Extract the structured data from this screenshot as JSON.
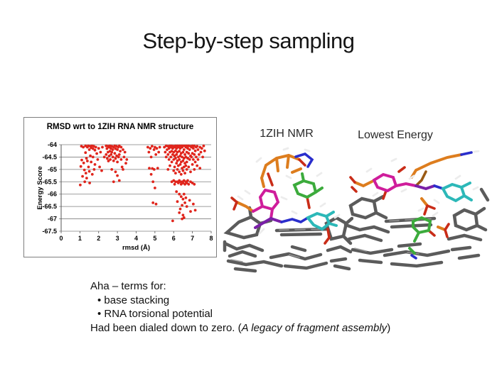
{
  "slide": {
    "title": "Step-by-step sampling"
  },
  "figures": {
    "left_label": "1ZIH NMR",
    "right_label": "Lowest Energy"
  },
  "notes": {
    "line1": "Aha – terms for:",
    "bullets": [
      "• base stacking",
      "• RNA torsional potential"
    ],
    "last_prefix": "Had been dialed down to zero. (",
    "last_italic": "A legacy of fragment assembly",
    "last_suffix": ")"
  },
  "chart_data": {
    "type": "scatter",
    "title": "RMSD wrt to 1ZIH RNA NMR structure",
    "xlabel": "rmsd (Å)",
    "ylabel": "Energy Score",
    "xlim": [
      0,
      8
    ],
    "ylim": [
      -67.5,
      -64
    ],
    "x_ticks": [
      0,
      1,
      2,
      3,
      4,
      5,
      6,
      7,
      8
    ],
    "y_ticks": [
      -64,
      -64.5,
      -65,
      -65.5,
      -66,
      -66.5,
      -67,
      -67.5
    ],
    "grid": "horizontal",
    "legend": "none",
    "marker_color": "#e0251c",
    "points": [
      [
        1.02,
        -65.63
      ],
      [
        1.05,
        -64.88
      ],
      [
        1.08,
        -64.06
      ],
      [
        1.1,
        -64.62
      ],
      [
        1.14,
        -65.28
      ],
      [
        1.18,
        -64.1
      ],
      [
        1.2,
        -64.74
      ],
      [
        1.24,
        -65.02
      ],
      [
        1.26,
        -65.5
      ],
      [
        1.3,
        -64.05
      ],
      [
        1.3,
        -64.32
      ],
      [
        1.32,
        -65.15
      ],
      [
        1.35,
        -64.55
      ],
      [
        1.36,
        -65.35
      ],
      [
        1.4,
        -64.1
      ],
      [
        1.4,
        -64.66
      ],
      [
        1.44,
        -64.05
      ],
      [
        1.46,
        -64.9
      ],
      [
        1.5,
        -64.2
      ],
      [
        1.5,
        -65.08
      ],
      [
        1.52,
        -65.55
      ],
      [
        1.55,
        -64.06
      ],
      [
        1.56,
        -64.45
      ],
      [
        1.6,
        -64.12
      ],
      [
        1.6,
        -64.7
      ],
      [
        1.64,
        -64.05
      ],
      [
        1.66,
        -65.2
      ],
      [
        1.7,
        -64.16
      ],
      [
        1.7,
        -64.5
      ],
      [
        1.74,
        -64.06
      ],
      [
        1.76,
        -65.0
      ],
      [
        1.8,
        -64.22
      ],
      [
        1.8,
        -64.8
      ],
      [
        1.85,
        -64.1
      ],
      [
        1.9,
        -64.36
      ],
      [
        1.95,
        -64.6
      ],
      [
        2.0,
        -64.15
      ],
      [
        2.05,
        -64.9
      ],
      [
        2.1,
        -64.3
      ],
      [
        2.16,
        -65.05
      ],
      [
        2.2,
        -64.1
      ],
      [
        2.3,
        -64.5
      ],
      [
        2.4,
        -64.05
      ],
      [
        2.4,
        -64.4
      ],
      [
        2.44,
        -64.16
      ],
      [
        2.46,
        -64.56
      ],
      [
        2.5,
        -64.06
      ],
      [
        2.5,
        -64.3
      ],
      [
        2.52,
        -64.66
      ],
      [
        2.55,
        -64.1
      ],
      [
        2.56,
        -64.46
      ],
      [
        2.6,
        -64.05
      ],
      [
        2.6,
        -64.26
      ],
      [
        2.62,
        -64.6
      ],
      [
        2.65,
        -64.15
      ],
      [
        2.66,
        -64.4
      ],
      [
        2.7,
        -64.06
      ],
      [
        2.7,
        -64.3
      ],
      [
        2.7,
        -65.0
      ],
      [
        2.75,
        -64.2
      ],
      [
        2.76,
        -64.5
      ],
      [
        2.8,
        -64.1
      ],
      [
        2.8,
        -64.65
      ],
      [
        2.8,
        -65.5
      ],
      [
        2.85,
        -64.05
      ],
      [
        2.86,
        -64.35
      ],
      [
        2.9,
        -64.16
      ],
      [
        2.9,
        -64.56
      ],
      [
        2.9,
        -65.1
      ],
      [
        2.95,
        -64.06
      ],
      [
        2.96,
        -64.45
      ],
      [
        3.0,
        -64.2
      ],
      [
        3.0,
        -64.7
      ],
      [
        3.0,
        -65.25
      ],
      [
        3.05,
        -64.1
      ],
      [
        3.06,
        -64.5
      ],
      [
        3.1,
        -64.05
      ],
      [
        3.1,
        -64.4
      ],
      [
        3.1,
        -65.45
      ],
      [
        3.15,
        -64.26
      ],
      [
        3.2,
        -64.1
      ],
      [
        3.2,
        -64.6
      ],
      [
        3.25,
        -64.9
      ],
      [
        3.3,
        -64.2
      ],
      [
        3.3,
        -65.0
      ],
      [
        3.35,
        -64.5
      ],
      [
        3.4,
        -64.3
      ],
      [
        3.45,
        -64.75
      ],
      [
        3.5,
        -64.6
      ],
      [
        4.62,
        -64.1
      ],
      [
        4.68,
        -64.3
      ],
      [
        4.7,
        -64.95
      ],
      [
        4.75,
        -64.15
      ],
      [
        4.8,
        -64.5
      ],
      [
        4.8,
        -65.2
      ],
      [
        4.85,
        -64.06
      ],
      [
        4.86,
        -64.96
      ],
      [
        4.9,
        -65.5
      ],
      [
        4.9,
        -66.35
      ],
      [
        4.95,
        -64.2
      ],
      [
        4.96,
        -65.0
      ],
      [
        5.0,
        -64.1
      ],
      [
        5.0,
        -65.75
      ],
      [
        5.05,
        -64.4
      ],
      [
        5.06,
        -66.4
      ],
      [
        5.1,
        -64.15
      ],
      [
        5.15,
        -64.95
      ],
      [
        5.2,
        -64.3
      ],
      [
        5.26,
        -64.1
      ],
      [
        5.5,
        -64.1
      ],
      [
        5.55,
        -64.3
      ],
      [
        5.6,
        -64.05
      ],
      [
        5.6,
        -64.5
      ],
      [
        5.65,
        -64.2
      ],
      [
        5.7,
        -64.06
      ],
      [
        5.7,
        -64.4
      ],
      [
        5.7,
        -65.0
      ],
      [
        5.75,
        -64.15
      ],
      [
        5.75,
        -64.6
      ],
      [
        5.8,
        -64.05
      ],
      [
        5.8,
        -64.3
      ],
      [
        5.8,
        -64.85
      ],
      [
        5.85,
        -64.1
      ],
      [
        5.85,
        -64.5
      ],
      [
        5.9,
        -64.05
      ],
      [
        5.9,
        -64.26
      ],
      [
        5.9,
        -64.7
      ],
      [
        5.95,
        -64.15
      ],
      [
        5.95,
        -64.4
      ],
      [
        6.0,
        -64.06
      ],
      [
        6.0,
        -64.3
      ],
      [
        6.0,
        -64.6
      ],
      [
        6.0,
        -65.05
      ],
      [
        6.05,
        -64.1
      ],
      [
        6.05,
        -64.45
      ],
      [
        6.05,
        -64.9
      ],
      [
        6.1,
        -64.05
      ],
      [
        6.1,
        -64.25
      ],
      [
        6.1,
        -64.55
      ],
      [
        6.1,
        -65.15
      ],
      [
        6.15,
        -64.15
      ],
      [
        6.15,
        -64.4
      ],
      [
        6.15,
        -64.75
      ],
      [
        6.2,
        -64.05
      ],
      [
        6.2,
        -64.3
      ],
      [
        6.2,
        -64.65
      ],
      [
        6.2,
        -65.0
      ],
      [
        6.25,
        -64.1
      ],
      [
        6.25,
        -64.5
      ],
      [
        6.25,
        -64.85
      ],
      [
        6.3,
        -64.05
      ],
      [
        6.3,
        -64.26
      ],
      [
        6.3,
        -64.6
      ],
      [
        6.3,
        -65.1
      ],
      [
        6.35,
        -64.15
      ],
      [
        6.35,
        -64.45
      ],
      [
        6.35,
        -64.8
      ],
      [
        6.4,
        -64.05
      ],
      [
        6.4,
        -64.35
      ],
      [
        6.4,
        -64.7
      ],
      [
        6.4,
        -65.2
      ],
      [
        6.45,
        -64.1
      ],
      [
        6.45,
        -64.5
      ],
      [
        6.45,
        -64.95
      ],
      [
        6.5,
        -64.05
      ],
      [
        6.5,
        -64.3
      ],
      [
        6.5,
        -64.65
      ],
      [
        6.5,
        -65.05
      ],
      [
        6.55,
        -64.2
      ],
      [
        6.55,
        -64.55
      ],
      [
        6.55,
        -64.9
      ],
      [
        6.6,
        -64.05
      ],
      [
        6.6,
        -64.4
      ],
      [
        6.6,
        -64.75
      ],
      [
        6.6,
        -65.15
      ],
      [
        6.65,
        -64.1
      ],
      [
        6.65,
        -64.5
      ],
      [
        6.65,
        -64.85
      ],
      [
        6.7,
        -64.05
      ],
      [
        6.7,
        -64.3
      ],
      [
        6.7,
        -64.7
      ],
      [
        6.7,
        -65.0
      ],
      [
        6.75,
        -64.15
      ],
      [
        6.75,
        -64.55
      ],
      [
        6.8,
        -64.05
      ],
      [
        6.8,
        -64.35
      ],
      [
        6.8,
        -64.9
      ],
      [
        6.85,
        -64.2
      ],
      [
        6.85,
        -64.6
      ],
      [
        6.9,
        -64.06
      ],
      [
        6.9,
        -64.45
      ],
      [
        6.9,
        -65.1
      ],
      [
        6.95,
        -64.1
      ],
      [
        6.95,
        -64.5
      ],
      [
        7.0,
        -64.05
      ],
      [
        7.0,
        -64.35
      ],
      [
        7.0,
        -64.8
      ],
      [
        7.05,
        -64.15
      ],
      [
        7.05,
        -64.6
      ],
      [
        7.1,
        -64.05
      ],
      [
        7.1,
        -64.4
      ],
      [
        7.1,
        -65.0
      ],
      [
        7.15,
        -64.25
      ],
      [
        7.15,
        -64.7
      ],
      [
        7.2,
        -64.1
      ],
      [
        7.2,
        -64.5
      ],
      [
        7.25,
        -64.06
      ],
      [
        7.25,
        -64.85
      ],
      [
        7.3,
        -64.2
      ],
      [
        7.3,
        -64.6
      ],
      [
        7.35,
        -64.4
      ],
      [
        7.4,
        -64.1
      ],
      [
        7.4,
        -64.95
      ],
      [
        7.45,
        -64.3
      ],
      [
        7.5,
        -64.15
      ],
      [
        7.55,
        -64.5
      ],
      [
        7.6,
        -64.05
      ],
      [
        7.65,
        -64.25
      ],
      [
        5.9,
        -65.5
      ],
      [
        6.0,
        -65.45
      ],
      [
        6.05,
        -65.6
      ],
      [
        6.1,
        -65.5
      ],
      [
        6.15,
        -65.9
      ],
      [
        6.2,
        -65.5
      ],
      [
        6.2,
        -66.3
      ],
      [
        6.25,
        -65.55
      ],
      [
        6.3,
        -65.45
      ],
      [
        6.3,
        -66.0
      ],
      [
        6.3,
        -66.75
      ],
      [
        6.35,
        -65.5
      ],
      [
        6.35,
        -66.6
      ],
      [
        6.4,
        -65.6
      ],
      [
        6.4,
        -66.1
      ],
      [
        6.45,
        -65.5
      ],
      [
        6.45,
        -66.45
      ],
      [
        6.45,
        -67.0
      ],
      [
        6.5,
        -65.55
      ],
      [
        6.5,
        -66.2
      ],
      [
        6.5,
        -66.85
      ],
      [
        6.55,
        -65.45
      ],
      [
        6.55,
        -66.0
      ],
      [
        6.55,
        -66.95
      ],
      [
        6.6,
        -65.6
      ],
      [
        6.6,
        -66.35
      ],
      [
        6.65,
        -65.5
      ],
      [
        6.65,
        -66.15
      ],
      [
        6.7,
        -65.55
      ],
      [
        6.7,
        -66.5
      ],
      [
        6.75,
        -65.45
      ],
      [
        6.8,
        -65.6
      ],
      [
        6.85,
        -66.25
      ],
      [
        6.9,
        -65.5
      ],
      [
        6.9,
        -66.7
      ],
      [
        7.0,
        -65.55
      ],
      [
        7.05,
        -66.4
      ],
      [
        7.1,
        -65.6
      ],
      [
        7.15,
        -66.65
      ],
      [
        5.95,
        -67.08
      ]
    ]
  }
}
